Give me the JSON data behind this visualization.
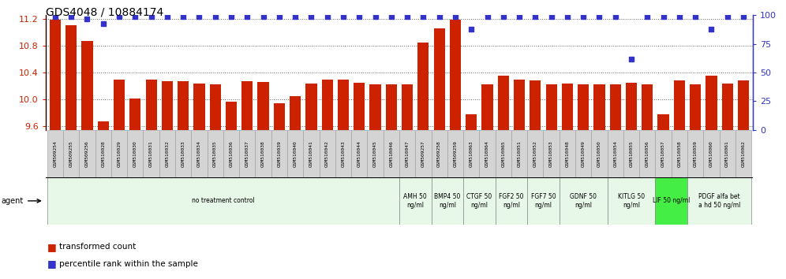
{
  "title": "GDS4048 / 10884174",
  "samples": [
    "GSM509254",
    "GSM509255",
    "GSM509256",
    "GSM510028",
    "GSM510029",
    "GSM510030",
    "GSM510031",
    "GSM510032",
    "GSM510033",
    "GSM510034",
    "GSM510035",
    "GSM510036",
    "GSM510037",
    "GSM510038",
    "GSM510039",
    "GSM510040",
    "GSM510041",
    "GSM510042",
    "GSM510043",
    "GSM510044",
    "GSM510045",
    "GSM510046",
    "GSM510047",
    "GSM509257",
    "GSM509258",
    "GSM509259",
    "GSM510063",
    "GSM510064",
    "GSM510065",
    "GSM510051",
    "GSM510052",
    "GSM510053",
    "GSM510048",
    "GSM510049",
    "GSM510050",
    "GSM510054",
    "GSM510055",
    "GSM510056",
    "GSM510057",
    "GSM510058",
    "GSM510059",
    "GSM510060",
    "GSM510061",
    "GSM510062"
  ],
  "bar_values": [
    11.18,
    11.1,
    10.87,
    9.68,
    10.3,
    10.01,
    10.3,
    10.27,
    10.27,
    10.24,
    10.22,
    9.97,
    10.27,
    10.26,
    9.94,
    10.05,
    10.24,
    10.3,
    10.3,
    10.25,
    10.22,
    10.22,
    10.22,
    10.85,
    11.06,
    11.18,
    9.78,
    10.22,
    10.35,
    10.3,
    10.28,
    10.22,
    10.24,
    10.22,
    10.22,
    10.22,
    10.25,
    10.22,
    9.78,
    10.28,
    10.22,
    10.35,
    10.24,
    10.28
  ],
  "percentile_values": [
    99,
    99,
    97,
    93,
    99,
    99,
    99,
    99,
    99,
    99,
    99,
    99,
    99,
    99,
    99,
    99,
    99,
    99,
    99,
    99,
    99,
    99,
    99,
    99,
    99,
    99,
    88,
    99,
    99,
    99,
    99,
    99,
    99,
    99,
    99,
    99,
    62,
    99,
    99,
    99,
    99,
    88,
    99,
    99
  ],
  "ylim_left": [
    9.55,
    11.25
  ],
  "ylim_right": [
    0,
    100
  ],
  "yticks_left": [
    9.6,
    10.0,
    10.4,
    10.8,
    11.2
  ],
  "yticks_right": [
    0,
    25,
    50,
    75,
    100
  ],
  "bar_color": "#cc2200",
  "dot_color": "#3333cc",
  "agent_groups": [
    {
      "label": "no treatment control",
      "start": 0,
      "end": 22,
      "color": "#e8f8e8"
    },
    {
      "label": "AMH 50\nng/ml",
      "start": 22,
      "end": 24,
      "color": "#e8f8e8"
    },
    {
      "label": "BMP4 50\nng/ml",
      "start": 24,
      "end": 26,
      "color": "#e8f8e8"
    },
    {
      "label": "CTGF 50\nng/ml",
      "start": 26,
      "end": 28,
      "color": "#e8f8e8"
    },
    {
      "label": "FGF2 50\nng/ml",
      "start": 28,
      "end": 30,
      "color": "#e8f8e8"
    },
    {
      "label": "FGF7 50\nng/ml",
      "start": 30,
      "end": 32,
      "color": "#e8f8e8"
    },
    {
      "label": "GDNF 50\nng/ml",
      "start": 32,
      "end": 35,
      "color": "#e8f8e8"
    },
    {
      "label": "KITLG 50\nng/ml",
      "start": 35,
      "end": 38,
      "color": "#e8f8e8"
    },
    {
      "label": "LIF 50 ng/ml",
      "start": 38,
      "end": 40,
      "color": "#44ee44"
    },
    {
      "label": "PDGF alfa bet\na hd 50 ng/ml",
      "start": 40,
      "end": 44,
      "color": "#e8f8e8"
    }
  ]
}
